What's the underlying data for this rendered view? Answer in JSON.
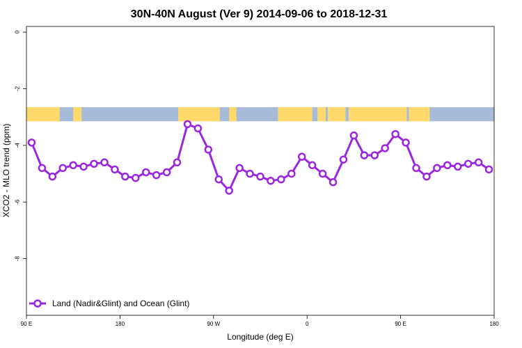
{
  "chart_data": {
    "type": "line",
    "title": "30N-40N August (Ver 9)   2014-09-06 to 2018-12-31",
    "xlabel": "Longitude (deg E)",
    "ylabel": "XCO2 - MLO trend (ppm)",
    "x_tick_positions": [
      90,
      180,
      270,
      360,
      450,
      540
    ],
    "x_tick_labels": [
      "90 E",
      "180",
      "90 W",
      "0",
      "90 E",
      "180"
    ],
    "xlim": [
      90,
      540
    ],
    "y_ticks": [
      0,
      -2,
      -4,
      -6,
      -8
    ],
    "y_tick_labels": [
      "0",
      "-2",
      "-4",
      "-6",
      "-8"
    ],
    "ylim": [
      -10,
      0.2
    ],
    "colors": {
      "series": "#9b26e0",
      "land": "#ffd96b",
      "ocean": "#a6bcd9"
    },
    "series": [
      {
        "name": "Land (Nadir&Glint) and Ocean (Glint)",
        "x": [
          95,
          105,
          115,
          125,
          135,
          145,
          155,
          165,
          175,
          185,
          195,
          205,
          215,
          225,
          235,
          245,
          255,
          265,
          275,
          285,
          295,
          305,
          315,
          325,
          335,
          345,
          355,
          365,
          375,
          385,
          395,
          405,
          415,
          425,
          435,
          445,
          455,
          465,
          475,
          485,
          495,
          505,
          515,
          525,
          535
        ],
        "values": [
          -3.9,
          -4.8,
          -5.1,
          -4.8,
          -4.7,
          -4.75,
          -4.65,
          -4.6,
          -4.85,
          -5.1,
          -5.15,
          -4.95,
          -5.05,
          -4.95,
          -4.6,
          -3.25,
          -3.4,
          -4.15,
          -5.2,
          -5.6,
          -4.8,
          -5.0,
          -5.1,
          -5.25,
          -5.2,
          -5.0,
          -4.4,
          -4.7,
          -5.0,
          -5.3,
          -4.5,
          -3.65,
          -4.35,
          -4.35,
          -4.1,
          -3.6,
          -3.9,
          -4.8,
          -5.1,
          -4.8,
          -4.7,
          -4.75,
          -4.65,
          -4.6,
          -4.85
        ]
      }
    ],
    "legend_position": "bottom-left",
    "grid": false,
    "map_strip": {
      "y_top": -2.65,
      "y_bottom": -3.15,
      "land_ranges": [
        [
          90,
          122
        ],
        [
          135,
          143
        ],
        [
          236,
          276
        ],
        [
          285,
          292
        ],
        [
          332,
          365
        ],
        [
          370,
          378
        ],
        [
          380,
          397
        ],
        [
          400,
          456
        ],
        [
          458,
          478
        ]
      ]
    }
  }
}
